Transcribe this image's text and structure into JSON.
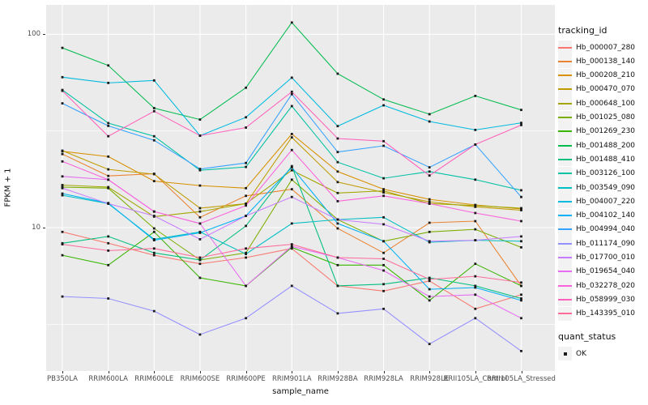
{
  "figure": {
    "panel_background": "#EBEBEB",
    "gridline_color": "#FFFFFF",
    "point_color": "#1A1A1A"
  },
  "axes": {
    "y": {
      "label": "FPKM + 1",
      "tick_labels": [
        "100",
        "10"
      ],
      "tick_values": [
        100,
        10
      ]
    },
    "x": {
      "label": "sample_name"
    }
  },
  "legend": {
    "tracking_title": "tracking_id",
    "quant_title": "quant_status",
    "quant_items": [
      {
        "label": "OK"
      }
    ]
  },
  "chart_data": {
    "type": "line",
    "title": "",
    "xlabel": "sample_name",
    "ylabel": "FPKM + 1",
    "y_scale": "log10",
    "ylim": [
      1.8,
      140
    ],
    "y_major_ticks": [
      100,
      10
    ],
    "y_minor_ticks": [
      31.6,
      3.16
    ],
    "grid": true,
    "legend_position": "right",
    "point_shape": "filled-square-black",
    "x_categories": [
      "PB350LA",
      "RRIM600LA",
      "RRIM600LE",
      "RRIM600SE",
      "RRIM600PE",
      "RRIM901LA",
      "RRIM928BA",
      "RRIM928LA",
      "RRIM928LE",
      "RRII105LA_Control",
      "RRII105LA_Stressed"
    ],
    "series": [
      {
        "name": "Hb_000007_280",
        "color": "#F8766D",
        "values": [
          9.5,
          8.3,
          7.2,
          6.5,
          7.0,
          7.8,
          5.0,
          4.7,
          5.3,
          3.8,
          4.5
        ]
      },
      {
        "name": "Hb_000138_140",
        "color": "#EA8331",
        "values": [
          24,
          18.5,
          19,
          11.3,
          14.6,
          15.8,
          9.9,
          7.4,
          10.6,
          10.8,
          5.0
        ]
      },
      {
        "name": "Hb_000208_210",
        "color": "#D89000",
        "values": [
          24.8,
          23.3,
          17.4,
          16.5,
          16.0,
          30.5,
          19.5,
          15.8,
          14.0,
          13.1,
          12.5
        ]
      },
      {
        "name": "Hb_000470_070",
        "color": "#C09B00",
        "values": [
          25.0,
          20.0,
          18.9,
          12.6,
          13.3,
          29.3,
          17.2,
          15.2,
          13.6,
          12.8,
          12.3
        ]
      },
      {
        "name": "Hb_000648_100",
        "color": "#A3A500",
        "values": [
          16.6,
          16.2,
          11.4,
          12.1,
          13.3,
          19.8,
          15.1,
          15.5,
          13.3,
          13.0,
          12.6
        ]
      },
      {
        "name": "Hb_001025_080",
        "color": "#7CAE00",
        "values": [
          16.2,
          16.0,
          9.9,
          6.8,
          7.4,
          17.7,
          11.0,
          8.5,
          9.5,
          9.8,
          7.9
        ]
      },
      {
        "name": "Hb_001269_230",
        "color": "#39B600",
        "values": [
          7.2,
          6.4,
          9.5,
          5.5,
          5.0,
          7.9,
          6.4,
          6.4,
          4.2,
          6.5,
          5.0
        ]
      },
      {
        "name": "Hb_001488_200",
        "color": "#00BB4E",
        "values": [
          85,
          69,
          41.5,
          36.2,
          52.9,
          115,
          62.5,
          46,
          38.6,
          48,
          40.6
        ]
      },
      {
        "name": "Hb_001488_410",
        "color": "#00BF7D",
        "values": [
          8.3,
          9.0,
          7.4,
          6.8,
          10.2,
          20.8,
          5.0,
          5.1,
          5.5,
          5.0,
          4.3
        ]
      },
      {
        "name": "Hb_003126_100",
        "color": "#00C1A3",
        "values": [
          51.5,
          34.7,
          29.7,
          19.8,
          20.6,
          42.5,
          21.8,
          18.0,
          19.5,
          17.7,
          15.6
        ]
      },
      {
        "name": "Hb_003549_090",
        "color": "#00BFC4",
        "values": [
          14.7,
          13.3,
          8.7,
          9.5,
          7.3,
          10.5,
          11.0,
          11.3,
          8.4,
          8.6,
          8.5
        ]
      },
      {
        "name": "Hb_004007_220",
        "color": "#00BAE0",
        "values": [
          60,
          56,
          57.7,
          29.9,
          37.2,
          59.6,
          33.5,
          42.9,
          35.4,
          32,
          34.8
        ]
      },
      {
        "name": "Hb_004102_140",
        "color": "#00B0F6",
        "values": [
          15.0,
          13.4,
          8.6,
          9.4,
          11.5,
          20.5,
          10.5,
          8.5,
          4.8,
          4.9,
          4.2
        ]
      },
      {
        "name": "Hb_004994_040",
        "color": "#35A2FF",
        "values": [
          43.9,
          33.6,
          28.3,
          20.1,
          21.6,
          49,
          24.6,
          26.5,
          20.5,
          26.9,
          14.4
        ]
      },
      {
        "name": "Hb_011174_090",
        "color": "#9590FF",
        "values": [
          4.4,
          4.3,
          3.7,
          2.8,
          3.4,
          5.0,
          3.6,
          3.8,
          2.5,
          3.4,
          2.3
        ]
      },
      {
        "name": "Hb_017700_010",
        "color": "#C77CFF",
        "values": [
          16.0,
          13.3,
          11.5,
          8.7,
          11.5,
          14.4,
          11.0,
          10.4,
          8.5,
          8.6,
          9.0
        ]
      },
      {
        "name": "Hb_019654_040",
        "color": "#E76BF3",
        "values": [
          18.4,
          17.7,
          12.1,
          10.5,
          5.0,
          8.0,
          7.0,
          6.0,
          4.4,
          4.5,
          3.4
        ]
      },
      {
        "name": "Hb_032278_020",
        "color": "#FA62DB",
        "values": [
          22,
          17.7,
          12.1,
          10.5,
          13.0,
          25.2,
          13.7,
          14.6,
          13.3,
          11.9,
          10.8
        ]
      },
      {
        "name": "Hb_058999_030",
        "color": "#FF62BC",
        "values": [
          51,
          29.7,
          40,
          29.9,
          32.9,
          50.4,
          28.9,
          28,
          18.6,
          26.9,
          33.9
        ]
      },
      {
        "name": "Hb_143395_010",
        "color": "#FF6A98",
        "values": [
          8.2,
          7.6,
          7.8,
          7.0,
          7.8,
          8.2,
          7.0,
          6.9,
          5.4,
          5.6,
          5.2
        ]
      }
    ]
  }
}
